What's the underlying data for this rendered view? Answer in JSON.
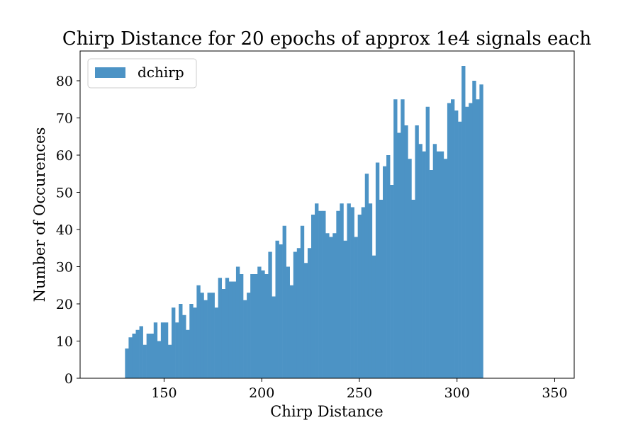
{
  "chart_data": {
    "type": "bar",
    "title": "Chirp Distance for 20 epochs of approx 1e4 signals each",
    "xlabel": "Chirp Distance",
    "ylabel": "Number of Occurences",
    "xlim": [
      107,
      360
    ],
    "ylim": [
      0,
      88
    ],
    "bin_start": 130,
    "bin_width": 1.8333,
    "xticks": [
      150,
      200,
      250,
      300,
      350
    ],
    "yticks": [
      0,
      10,
      20,
      30,
      40,
      50,
      60,
      70,
      80
    ],
    "grid": false,
    "legend_position": "top-left",
    "series": [
      {
        "name": "dchirp",
        "color": "#4c93c5",
        "values": [
          8,
          11,
          12,
          13,
          14,
          9,
          12,
          12,
          15,
          10,
          15,
          15,
          9,
          19,
          15,
          20,
          17,
          13,
          20,
          19,
          25,
          23,
          21,
          23,
          23,
          19,
          27,
          24,
          27,
          26,
          26,
          30,
          28,
          21,
          23,
          28,
          28,
          30,
          29,
          28,
          34,
          22,
          37,
          36,
          41,
          30,
          25,
          34,
          35,
          41,
          31,
          35,
          44,
          47,
          45,
          45,
          39,
          38,
          39,
          45,
          47,
          37,
          47,
          46,
          38,
          44,
          46,
          55,
          47,
          33,
          58,
          48,
          57,
          60,
          52,
          75,
          66,
          75,
          68,
          59,
          48,
          68,
          63,
          61,
          73,
          56,
          63,
          61,
          61,
          59,
          74,
          75,
          72,
          69,
          84,
          73,
          74,
          80,
          75,
          79
        ]
      }
    ]
  }
}
